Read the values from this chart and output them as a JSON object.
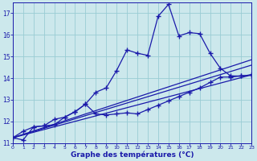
{
  "xlabel": "Graphe des températures (°C)",
  "xlim": [
    0,
    23
  ],
  "ylim": [
    11,
    17.5
  ],
  "yticks": [
    11,
    12,
    13,
    14,
    15,
    16,
    17
  ],
  "xticks": [
    0,
    1,
    2,
    3,
    4,
    5,
    6,
    7,
    8,
    9,
    10,
    11,
    12,
    13,
    14,
    15,
    16,
    17,
    18,
    19,
    20,
    21,
    22,
    23
  ],
  "bg_color": "#cce8ec",
  "grid_color": "#99ccd4",
  "line_color": "#1a1aaa",
  "spiky_x": [
    0,
    1,
    2,
    3,
    4,
    5,
    6,
    7,
    8,
    9,
    10,
    11,
    12,
    13,
    14,
    15,
    16,
    17,
    18,
    19,
    20,
    21,
    22,
    23
  ],
  "spiky_y": [
    11.25,
    11.55,
    11.75,
    11.8,
    11.85,
    12.2,
    12.45,
    12.8,
    13.35,
    13.55,
    14.35,
    15.3,
    15.15,
    15.05,
    16.85,
    17.4,
    15.95,
    16.1,
    16.05,
    15.15,
    14.45,
    14.1,
    14.1,
    14.15
  ],
  "lower_x": [
    0,
    1,
    2,
    3,
    4,
    5,
    6,
    7,
    8,
    9,
    10,
    11,
    12,
    13,
    14,
    15,
    16,
    17,
    18,
    19,
    20,
    21,
    22,
    23
  ],
  "lower_y": [
    11.25,
    11.15,
    11.75,
    11.8,
    12.1,
    12.2,
    12.45,
    12.8,
    12.35,
    12.3,
    12.35,
    12.4,
    12.35,
    12.55,
    12.75,
    12.95,
    13.15,
    13.35,
    13.55,
    13.8,
    14.05,
    14.05,
    14.1,
    14.15
  ],
  "trend1_x": [
    0,
    23
  ],
  "trend1_y": [
    11.25,
    14.15
  ],
  "trend2_x": [
    0,
    23
  ],
  "trend2_y": [
    11.25,
    14.6
  ],
  "trend3_x": [
    0,
    23
  ],
  "trend3_y": [
    11.25,
    14.85
  ]
}
